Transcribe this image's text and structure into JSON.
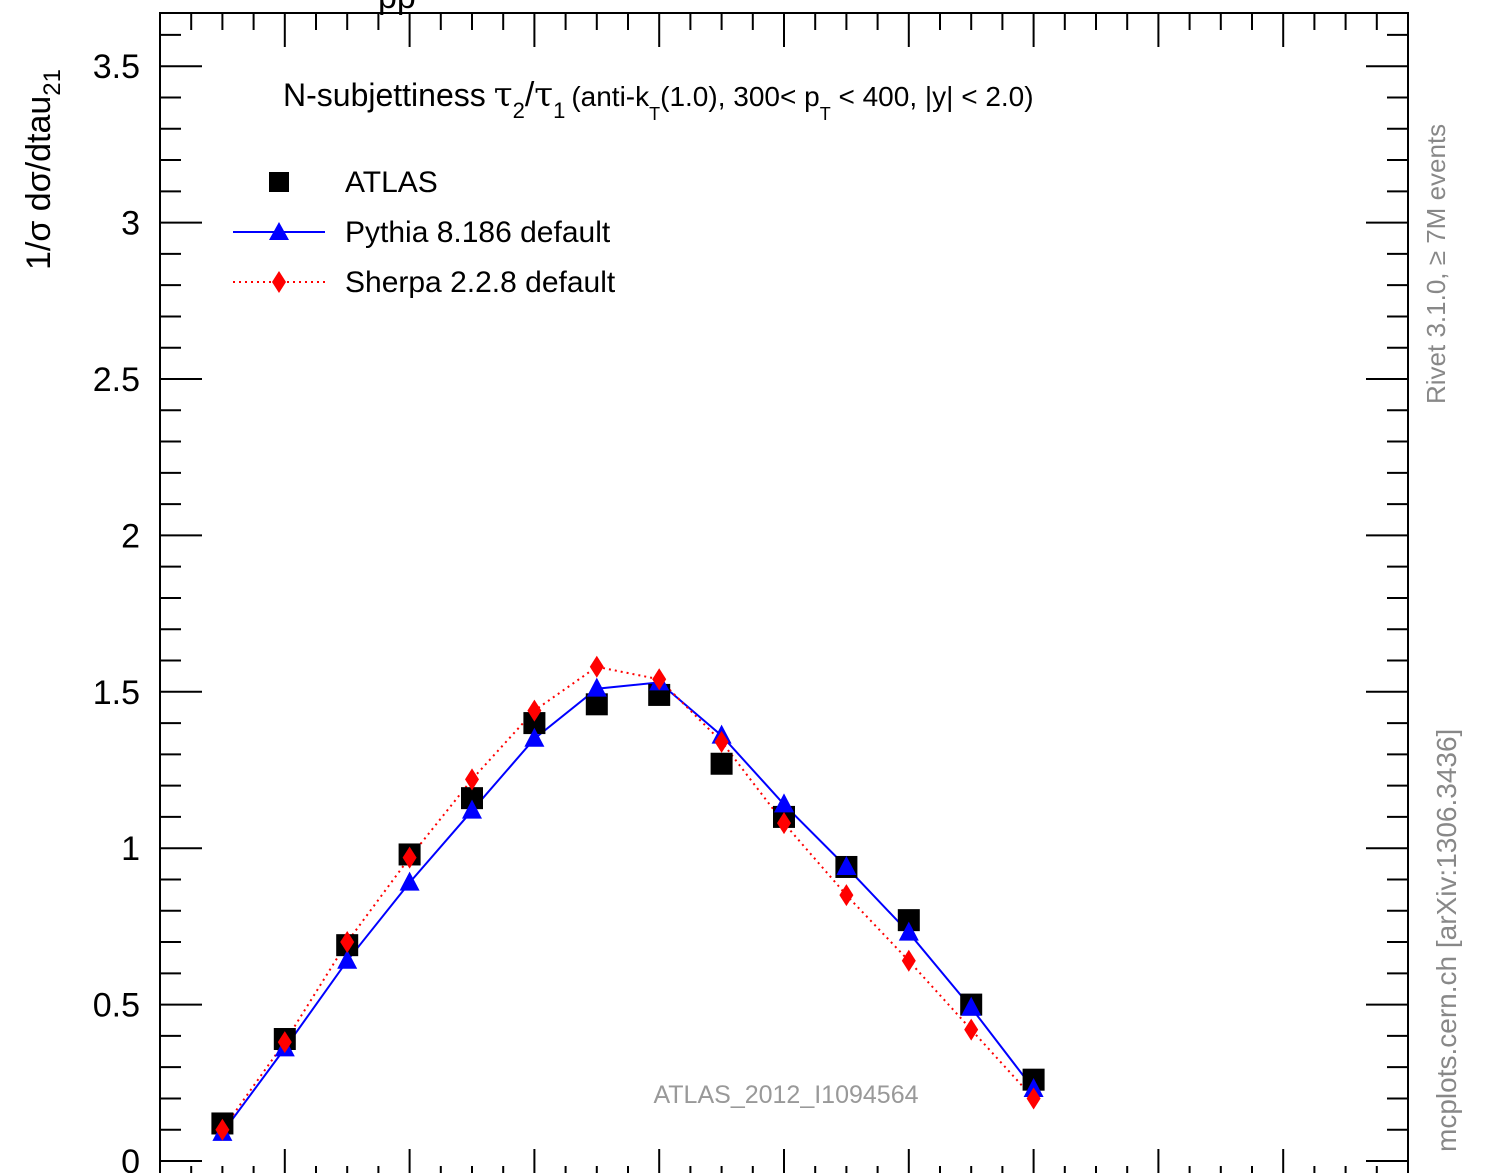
{
  "ylabel_main": "1/σ dσ/dtau",
  "ylabel_sub": "21",
  "top_label_fragment": "pp",
  "title": {
    "prefix": "N-subjettiness",
    "tau": "τ",
    "sub2": "2",
    "slash": "/",
    "sub1": "1",
    "mid": "(anti-k",
    "subT1": "T",
    "mid2": "(1.0), 300< p",
    "subT2": "T",
    "tail": " < 400, |y| < 2.0)"
  },
  "right_label_top": "Rivet 3.1.0, ≥ 7M events",
  "right_label_bottom": "mcplots.cern.ch [arXiv:1306.3436]",
  "watermark": "ATLAS_2012_I1094564",
  "colors": {
    "atlas": "#000000",
    "pythia": "#0000ff",
    "sherpa": "#ff0000"
  },
  "chart_data": {
    "type": "scatter",
    "ylabel": "1/σ dσ/dtau21",
    "xlim": [
      0,
      1
    ],
    "ylim": [
      0,
      3.7
    ],
    "y_ticks": [
      0,
      0.5,
      1,
      1.5,
      2,
      2.5,
      3,
      3.5
    ],
    "y_tick_labels": [
      "0",
      "0.5",
      "1",
      "1.5",
      "2",
      "2.5",
      "3",
      "3.5"
    ],
    "x": [
      0.05,
      0.1,
      0.15,
      0.2,
      0.25,
      0.3,
      0.35,
      0.4,
      0.45,
      0.5,
      0.55,
      0.6,
      0.65,
      0.7
    ],
    "series": [
      {
        "name": "ATLAS",
        "style": "markers-square",
        "values": [
          0.12,
          0.39,
          0.69,
          0.98,
          1.16,
          1.4,
          1.46,
          1.49,
          1.27,
          1.1,
          0.94,
          0.77,
          0.5,
          0.26
        ]
      },
      {
        "name": "Pythia 8.186 default",
        "style": "solid-triangle",
        "values": [
          0.09,
          0.36,
          0.64,
          0.89,
          1.12,
          1.35,
          1.51,
          1.53,
          1.36,
          1.14,
          0.94,
          0.73,
          0.49,
          0.23
        ]
      },
      {
        "name": "Sherpa 2.2.8 default",
        "style": "dotted-diamond",
        "values": [
          0.1,
          0.38,
          0.7,
          0.97,
          1.22,
          1.44,
          1.58,
          1.54,
          1.34,
          1.08,
          0.85,
          0.64,
          0.42,
          0.2
        ]
      }
    ],
    "legend_position": "top-left"
  }
}
